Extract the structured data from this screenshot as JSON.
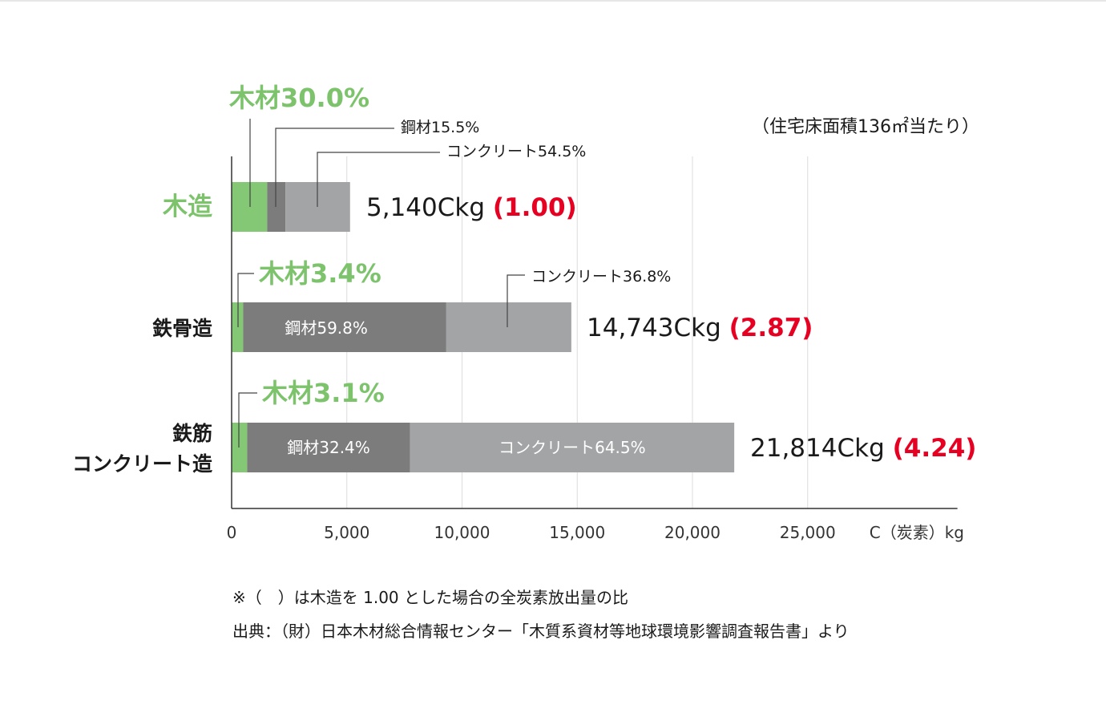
{
  "chart_data": {
    "type": "bar",
    "orientation": "horizontal",
    "stacked": true,
    "categories": [
      "木造",
      "鉄骨造",
      "鉄筋\nコンクリート造"
    ],
    "series": [
      {
        "name": "木材",
        "values": [
          1542,
          501,
          676
        ]
      },
      {
        "name": "鋼材",
        "values": [
          797,
          8816,
          7068
        ]
      },
      {
        "name": "コンクリート",
        "values": [
          2801,
          5426,
          14070
        ]
      }
    ],
    "totals": [
      5140,
      14743,
      21814
    ],
    "total_labels": [
      "5,140Ckg",
      "14,743Ckg",
      "21,814Ckg"
    ],
    "ratio_labels": [
      "(1.00)",
      "(2.87)",
      "(4.24)"
    ],
    "share_labels": [
      {
        "wood": "木材30.0%",
        "steel": "鋼材15.5%",
        "concrete": "コンクリート54.5%"
      },
      {
        "wood": "木材3.4%",
        "steel": "鋼材59.8%",
        "concrete": "コンクリート36.8%"
      },
      {
        "wood": "木材3.1%",
        "steel": "鋼材32.4%",
        "concrete": "コンクリート64.5%"
      }
    ],
    "xlim": [
      0,
      31500
    ],
    "x_ticks": [
      0,
      5000,
      10000,
      15000,
      20000,
      25000
    ],
    "x_tick_labels": [
      "0",
      "5,000",
      "10,000",
      "15,000",
      "20,000",
      "25,000"
    ],
    "xlabel": "C（炭素）kg",
    "subtitle": "（住宅床面積136㎡当たり）",
    "grid": "vertical",
    "colors": {
      "wood": "#84c775",
      "steel": "#7b7c7b",
      "concrete": "#a3a4a5",
      "ratio": "#e60022",
      "wood_text": "#7cc36c",
      "text": "#1a1a1a",
      "grid": "#dcdcdc",
      "axis": "#333333"
    }
  },
  "notes": {
    "line1": "※（　）は木造を 1.00 とした場合の全炭素放出量の比",
    "line2": "出典：（財）日本木材総合情報センター「木質系資材等地球環境影響調査報告書」より"
  }
}
